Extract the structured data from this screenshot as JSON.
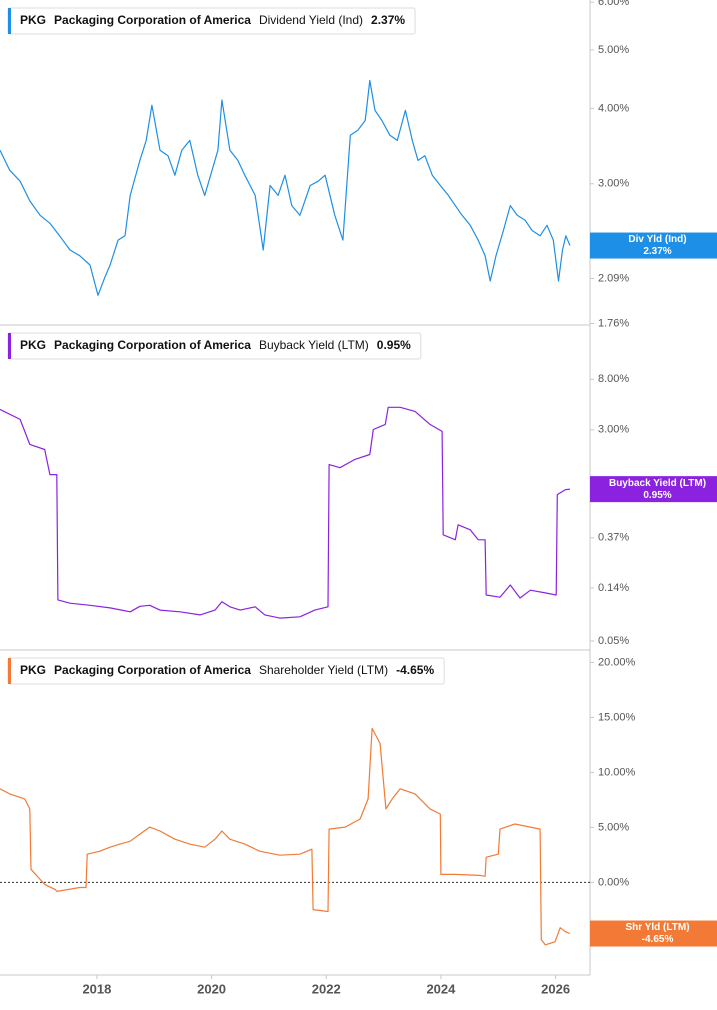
{
  "chart_data": [
    {
      "type": "line",
      "ticker": "PKG",
      "company": "Packaging Corporation of America",
      "metric": "Dividend Yield (Ind)",
      "current_label": "2.37%",
      "log": true,
      "xlim": [
        2016.31,
        2026.6
      ],
      "xticks": [
        2018,
        2020,
        2022,
        2024,
        2026
      ],
      "ylim": [
        1.75,
        6.05
      ],
      "yticks": [
        {
          "value": 6,
          "label": "6.00%"
        },
        {
          "value": 5,
          "label": "5.00%"
        },
        {
          "value": 4,
          "label": "4.00%"
        },
        {
          "value": 3,
          "label": "3.00%"
        },
        {
          "value": 2.09,
          "label": "2.09%"
        },
        {
          "value": 1.76,
          "label": "1.76%"
        }
      ],
      "x": [
        2016.31,
        2016.48,
        2016.66,
        2016.83,
        2017.01,
        2017.18,
        2017.35,
        2017.53,
        2017.7,
        2017.88,
        2018.02,
        2018.14,
        2018.23,
        2018.37,
        2018.49,
        2018.58,
        2018.75,
        2018.86,
        2018.96,
        2019.1,
        2019.24,
        2019.36,
        2019.48,
        2019.62,
        2019.76,
        2019.88,
        2020.01,
        2020.11,
        2020.18,
        2020.32,
        2020.46,
        2020.58,
        2020.76,
        2020.9,
        2021.02,
        2021.16,
        2021.28,
        2021.4,
        2021.54,
        2021.72,
        2021.86,
        2021.98,
        2022.15,
        2022.29,
        2022.42,
        2022.55,
        2022.68,
        2022.76,
        2022.85,
        2022.97,
        2023.11,
        2023.24,
        2023.38,
        2023.5,
        2023.6,
        2023.72,
        2023.85,
        2023.99,
        2024.13,
        2024.25,
        2024.37,
        2024.51,
        2024.65,
        2024.77,
        2024.86,
        2024.96,
        2025.09,
        2025.21,
        2025.33,
        2025.47,
        2025.59,
        2025.73,
        2025.85,
        2025.96,
        2026.05,
        2026.12,
        2026.18,
        2026.25
      ],
      "series": [
        {
          "name": "Div Yld (Ind)",
          "color": "#1e8fe6",
          "values": [
            3.41,
            3.16,
            3.03,
            2.81,
            2.66,
            2.58,
            2.46,
            2.33,
            2.28,
            2.2,
            1.96,
            2.1,
            2.2,
            2.42,
            2.46,
            2.87,
            3.28,
            3.54,
            4.05,
            3.41,
            3.34,
            3.1,
            3.41,
            3.54,
            3.1,
            2.87,
            3.16,
            3.41,
            4.13,
            3.41,
            3.28,
            3.1,
            2.87,
            2.33,
            2.98,
            2.87,
            3.1,
            2.76,
            2.66,
            2.98,
            3.03,
            3.1,
            2.66,
            2.42,
            3.61,
            3.68,
            3.82,
            4.45,
            3.97,
            3.82,
            3.61,
            3.54,
            3.97,
            3.54,
            3.28,
            3.34,
            3.1,
            2.98,
            2.87,
            2.76,
            2.66,
            2.56,
            2.42,
            2.28,
            2.07,
            2.28,
            2.51,
            2.76,
            2.66,
            2.61,
            2.51,
            2.46,
            2.56,
            2.42,
            2.07,
            2.33,
            2.46,
            2.37
          ]
        }
      ]
    },
    {
      "type": "line",
      "ticker": "PKG",
      "company": "Packaging Corporation of America",
      "metric": "Buyback Yield (LTM)",
      "current_label": "0.95%",
      "log": true,
      "xlim": [
        2016.31,
        2026.6
      ],
      "xticks": [
        2018,
        2020,
        2022,
        2024,
        2026
      ],
      "ylim": [
        0.042,
        22.9
      ],
      "yticks": [
        {
          "value": 8,
          "label": "8.00%"
        },
        {
          "value": 3,
          "label": "3.00%"
        },
        {
          "value": 0.37,
          "label": "0.37%"
        },
        {
          "value": 0.14,
          "label": "0.14%"
        },
        {
          "value": 0.05,
          "label": "0.05%"
        }
      ],
      "x": [
        2016.31,
        2016.66,
        2016.83,
        2017.09,
        2017.18,
        2017.3,
        2017.32,
        2017.53,
        2017.88,
        2018.23,
        2018.58,
        2018.75,
        2018.92,
        2019.1,
        2019.45,
        2019.8,
        2020.06,
        2020.18,
        2020.32,
        2020.5,
        2020.76,
        2020.93,
        2021.19,
        2021.54,
        2021.8,
        2022.03,
        2022.05,
        2022.24,
        2022.5,
        2022.76,
        2022.82,
        2023.03,
        2023.08,
        2023.29,
        2023.55,
        2023.81,
        2024.02,
        2024.04,
        2024.25,
        2024.3,
        2024.51,
        2024.65,
        2024.77,
        2024.79,
        2025.03,
        2025.21,
        2025.38,
        2025.56,
        2025.82,
        2026.01,
        2026.03,
        2026.17,
        2026.25
      ],
      "series": [
        {
          "name": "Buyback Yield (LTM)",
          "color": "#8a22e0",
          "values": [
            4.46,
            3.67,
            2.26,
            2.05,
            1.26,
            1.26,
            0.111,
            0.104,
            0.1,
            0.095,
            0.088,
            0.098,
            0.1,
            0.091,
            0.088,
            0.083,
            0.091,
            0.107,
            0.097,
            0.091,
            0.097,
            0.083,
            0.078,
            0.08,
            0.091,
            0.097,
            1.53,
            1.44,
            1.69,
            1.86,
            3.02,
            3.33,
            4.64,
            4.64,
            4.29,
            3.33,
            2.91,
            0.392,
            0.356,
            0.476,
            0.432,
            0.356,
            0.356,
            0.122,
            0.117,
            0.148,
            0.115,
            0.134,
            0.127,
            0.122,
            0.854,
            0.94,
            0.95
          ]
        }
      ]
    },
    {
      "type": "line",
      "ticker": "PKG",
      "company": "Packaging Corporation of America",
      "metric": "Shareholder Yield (LTM)",
      "current_label": "-4.65%",
      "log": false,
      "zero_line": true,
      "xlim": [
        2016.31,
        2026.6
      ],
      "xticks": [
        2018,
        2020,
        2022,
        2024,
        2026
      ],
      "ylim": [
        -8.42,
        21.13
      ],
      "yticks": [
        {
          "value": 20,
          "label": "20.00%"
        },
        {
          "value": 15,
          "label": "15.00%"
        },
        {
          "value": 10,
          "label": "10.00%"
        },
        {
          "value": 5,
          "label": "5.00%"
        },
        {
          "value": 0,
          "label": "0.00%"
        }
      ],
      "x": [
        2016.31,
        2016.48,
        2016.74,
        2016.83,
        2016.85,
        2017.01,
        2017.09,
        2017.27,
        2017.3,
        2017.7,
        2017.81,
        2017.83,
        2018.05,
        2018.23,
        2018.4,
        2018.58,
        2018.75,
        2018.92,
        2019.1,
        2019.36,
        2019.62,
        2019.88,
        2020.06,
        2020.18,
        2020.32,
        2020.58,
        2020.84,
        2021.19,
        2021.54,
        2021.75,
        2021.77,
        2022.03,
        2022.05,
        2022.33,
        2022.59,
        2022.73,
        2022.8,
        2022.94,
        2023.04,
        2023.15,
        2023.29,
        2023.55,
        2023.81,
        2023.99,
        2024.0,
        2024.25,
        2024.68,
        2024.77,
        2024.79,
        2025.0,
        2025.03,
        2025.29,
        2025.56,
        2025.73,
        2025.75,
        2025.82,
        2025.99,
        2026.08,
        2026.17,
        2026.25
      ],
      "series": [
        {
          "name": "Shr Yld (LTM)",
          "color": "#f27a36",
          "values": [
            8.51,
            8.05,
            7.59,
            6.68,
            1.19,
            0.27,
            -0.18,
            -0.64,
            -0.82,
            -0.46,
            -0.46,
            2.56,
            2.84,
            3.2,
            3.48,
            3.75,
            4.39,
            5.03,
            4.67,
            3.93,
            3.48,
            3.2,
            3.93,
            4.67,
            3.93,
            3.48,
            2.84,
            2.47,
            2.56,
            3.02,
            -2.47,
            -2.65,
            4.85,
            5.03,
            5.76,
            7.59,
            14.0,
            12.63,
            6.68,
            7.59,
            8.51,
            8.05,
            6.68,
            6.22,
            0.73,
            0.73,
            0.64,
            0.55,
            2.29,
            2.56,
            4.85,
            5.31,
            5.03,
            4.85,
            -5.21,
            -5.67,
            -5.4,
            -4.12,
            -4.48,
            -4.65
          ]
        }
      ]
    }
  ]
}
